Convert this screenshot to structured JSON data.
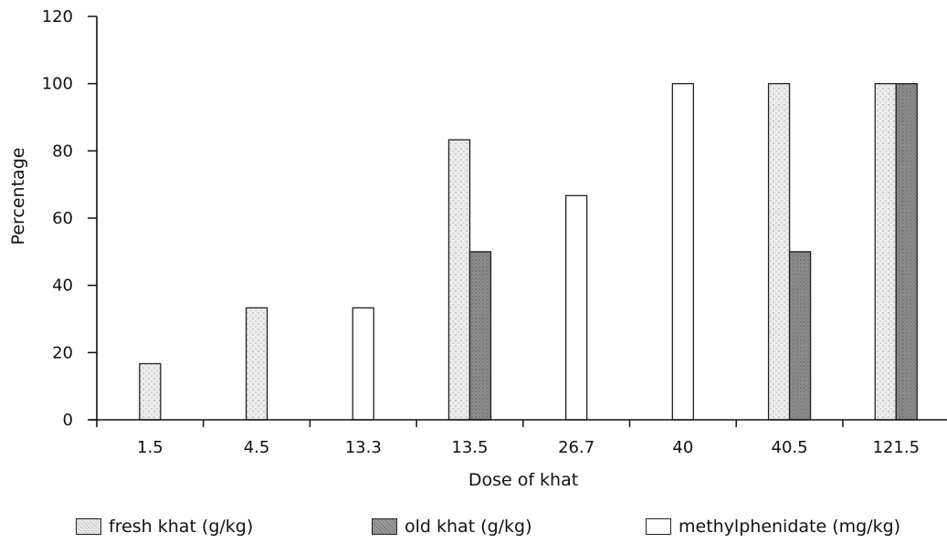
{
  "chart_data": {
    "type": "bar",
    "categories": [
      "1.5",
      "4.5",
      "13.3",
      "13.5",
      "26.7",
      "40",
      "40.5",
      "121.5"
    ],
    "series": [
      {
        "name": "fresh khat (g/kg)",
        "values": [
          16.7,
          33.3,
          null,
          83.3,
          null,
          null,
          100,
          100
        ],
        "color": "#e4e4e4"
      },
      {
        "name": "old khat (g/kg)",
        "values": [
          null,
          null,
          null,
          50,
          null,
          null,
          50,
          100
        ],
        "color": "#8f8f8f"
      },
      {
        "name": "methylphenidate (mg/kg)",
        "values": [
          null,
          null,
          33.3,
          null,
          66.7,
          100,
          null,
          null
        ],
        "color": "#ffffff"
      }
    ],
    "title": "",
    "xlabel": "Dose of khat",
    "ylabel": "Percentage",
    "ylim": [
      0,
      120
    ],
    "yticks": [
      "0",
      "20",
      "40",
      "60",
      "80",
      "100",
      "120"
    ],
    "grid": false,
    "legend_position": "bottom"
  }
}
